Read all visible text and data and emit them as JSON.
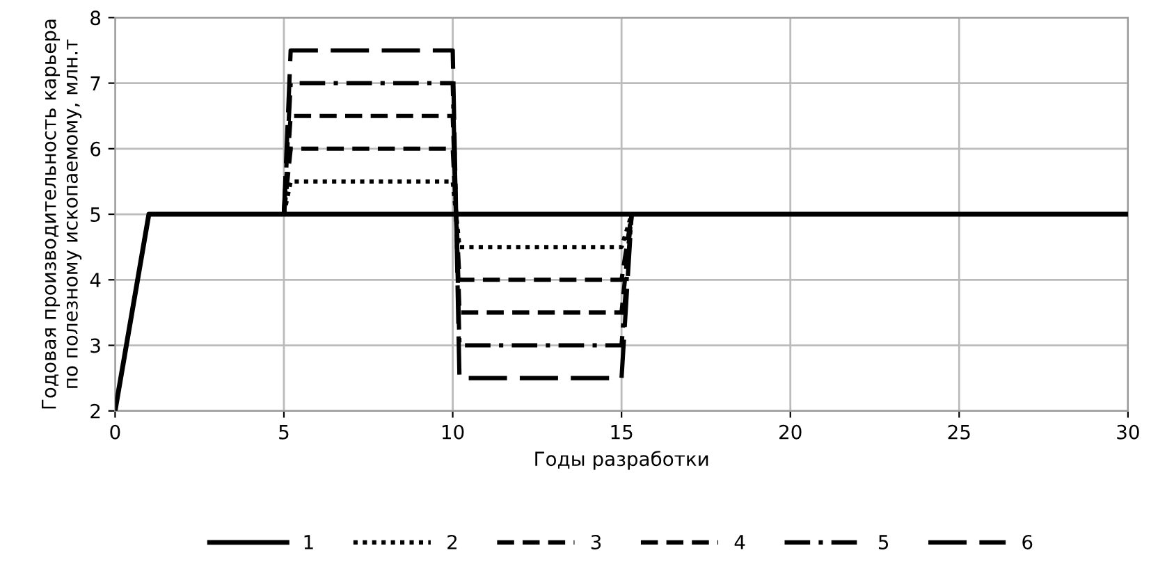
{
  "chart_data": {
    "type": "line",
    "xlabel": "Годы разработки",
    "ylabel": "Годовая производительность карьера\nпо полезному ископаемому, млн.т",
    "xlim": [
      0,
      30
    ],
    "xticks": [
      0,
      5,
      10,
      15,
      20,
      25,
      30
    ],
    "ylim": [
      2,
      8
    ],
    "yticks": [
      2,
      3,
      4,
      5,
      6,
      7,
      8
    ],
    "grid": true,
    "legend": "bottom",
    "series": [
      {
        "name": "1",
        "color": "#000000",
        "line_style": "solid",
        "x": [
          0,
          1,
          30
        ],
        "values": [
          2,
          5,
          5
        ]
      },
      {
        "name": "2",
        "color": "#000000",
        "line_style": "dotted",
        "x": [
          5,
          5.2,
          10,
          10.2,
          15,
          15.3
        ],
        "values": [
          5,
          5.5,
          5.5,
          4.5,
          4.5,
          5
        ]
      },
      {
        "name": "3",
        "color": "#000000",
        "line_style": "dashed",
        "x": [
          5,
          5.2,
          10,
          10.2,
          15,
          15.3
        ],
        "values": [
          5,
          6,
          6,
          4,
          4,
          5
        ]
      },
      {
        "name": "4",
        "color": "#000000",
        "line_style": "dashed",
        "x": [
          5,
          5.2,
          10,
          10.2,
          15,
          15.3
        ],
        "values": [
          5,
          6.5,
          6.5,
          3.5,
          3.5,
          5
        ]
      },
      {
        "name": "5",
        "color": "#000000",
        "line_style": "dashdot",
        "x": [
          5,
          5.2,
          10,
          10.2,
          15,
          15.3
        ],
        "values": [
          5,
          7,
          7,
          3,
          3,
          5
        ]
      },
      {
        "name": "6",
        "color": "#000000",
        "line_style": "longdash",
        "x": [
          5,
          5.2,
          10,
          10.2,
          15,
          15.3
        ],
        "values": [
          5,
          7.5,
          7.5,
          2.5,
          2.5,
          5
        ]
      }
    ]
  }
}
